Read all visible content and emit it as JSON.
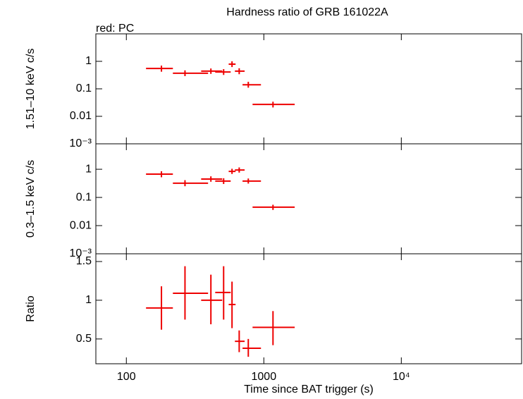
{
  "chart_data": [
    {
      "type": "errorbar",
      "title": "Hardness ratio of GRB 161022A",
      "annotation": "red: PC",
      "ylabel": "1.51–10 keV c/s",
      "xlog": true,
      "ylog": true,
      "xlim": [
        60,
        75000
      ],
      "xticks": [
        100,
        1000,
        {
          "value": 10000,
          "label": "10⁴"
        }
      ],
      "ylim": [
        0.001,
        10
      ],
      "yticks": [
        1,
        0.1,
        0.01,
        {
          "value": 0.001,
          "label": "10⁻³"
        }
      ],
      "color": "#ee0000",
      "x": [
        180,
        267,
        412,
        510,
        587,
        662,
        771,
        1166
      ],
      "x_lo": [
        139,
        218,
        350,
        443,
        555,
        616,
        700,
        828
      ],
      "x_hi": [
        218,
        393,
        498,
        574,
        623,
        725,
        953,
        1677
      ],
      "values": [
        0.55,
        0.37,
        0.44,
        0.41,
        0.79,
        0.44,
        0.14,
        0.027
      ],
      "y_lo": [
        0.42,
        0.29,
        0.35,
        0.32,
        0.62,
        0.34,
        0.11,
        0.021
      ],
      "y_hi": [
        0.7,
        0.47,
        0.55,
        0.52,
        1.0,
        0.56,
        0.18,
        0.034
      ]
    },
    {
      "type": "errorbar",
      "ylabel": "0.3–1.5 keV c/s",
      "xlog": true,
      "ylog": true,
      "xlim": [
        60,
        75000
      ],
      "xticks": [
        100,
        1000,
        {
          "value": 10000,
          "label": "10⁴"
        }
      ],
      "ylim": [
        0.001,
        8
      ],
      "yticks": [
        1,
        0.1,
        0.01,
        {
          "value": 0.001,
          "label": "10⁻³"
        }
      ],
      "color": "#ee0000",
      "x": [
        180,
        267,
        412,
        510,
        587,
        662,
        771,
        1166
      ],
      "x_lo": [
        139,
        218,
        350,
        443,
        555,
        616,
        700,
        828
      ],
      "x_hi": [
        218,
        393,
        498,
        574,
        623,
        725,
        953,
        1677
      ],
      "values": [
        0.67,
        0.32,
        0.45,
        0.38,
        0.84,
        0.94,
        0.38,
        0.045
      ],
      "y_lo": [
        0.52,
        0.25,
        0.36,
        0.3,
        0.68,
        0.76,
        0.31,
        0.036
      ],
      "y_hi": [
        0.85,
        0.41,
        0.56,
        0.48,
        1.04,
        1.16,
        0.47,
        0.055
      ]
    },
    {
      "type": "errorbar",
      "ylabel": "Ratio",
      "xlabel": "Time since BAT trigger (s)",
      "xlog": true,
      "ylog": false,
      "xlim": [
        60,
        75000
      ],
      "xticks": [
        100,
        1000,
        {
          "value": 10000,
          "label": "10⁴"
        }
      ],
      "ylim": [
        0.18,
        1.6
      ],
      "yticks": [
        0.5,
        1,
        1.5
      ],
      "color": "#ee0000",
      "x": [
        180,
        267,
        412,
        510,
        587,
        662,
        771,
        1166
      ],
      "x_lo": [
        139,
        218,
        350,
        443,
        555,
        616,
        700,
        828
      ],
      "x_hi": [
        218,
        393,
        498,
        574,
        623,
        725,
        953,
        1677
      ],
      "values": [
        0.9,
        1.09,
        1.0,
        1.1,
        0.945,
        0.47,
        0.38,
        0.65
      ],
      "y_lo": [
        0.62,
        0.75,
        0.69,
        0.75,
        0.64,
        0.33,
        0.27,
        0.42
      ],
      "y_hi": [
        1.18,
        1.44,
        1.33,
        1.44,
        1.24,
        0.61,
        0.5,
        0.86
      ]
    }
  ]
}
